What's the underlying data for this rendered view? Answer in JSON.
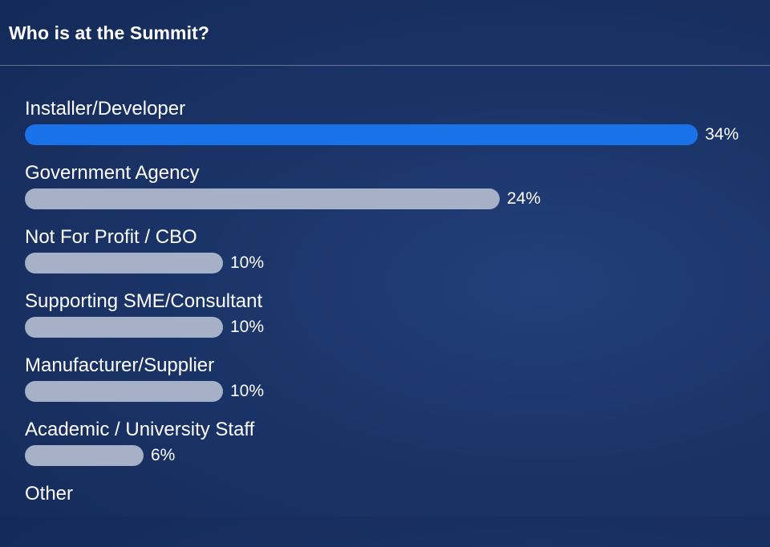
{
  "header": {
    "title": "Who is at the Summit?"
  },
  "colors": {
    "accent_bar": "#1a72e8",
    "default_bar": "#a6b1c8",
    "background": "#1b3468"
  },
  "chart_data": {
    "type": "bar",
    "orientation": "horizontal",
    "title": "Who is at the Summit?",
    "categories": [
      "Installer/Developer",
      "Government Agency",
      "Not For Profit / CBO",
      "Supporting SME/Consultant",
      "Manufacturer/Supplier",
      "Academic / University Staff",
      "Other"
    ],
    "values": [
      34,
      24,
      10,
      10,
      10,
      6,
      null
    ],
    "value_labels": [
      "34%",
      "24%",
      "10%",
      "10%",
      "10%",
      "6%",
      ""
    ],
    "xlim": [
      0,
      34
    ],
    "grid": false,
    "legend": "none"
  }
}
